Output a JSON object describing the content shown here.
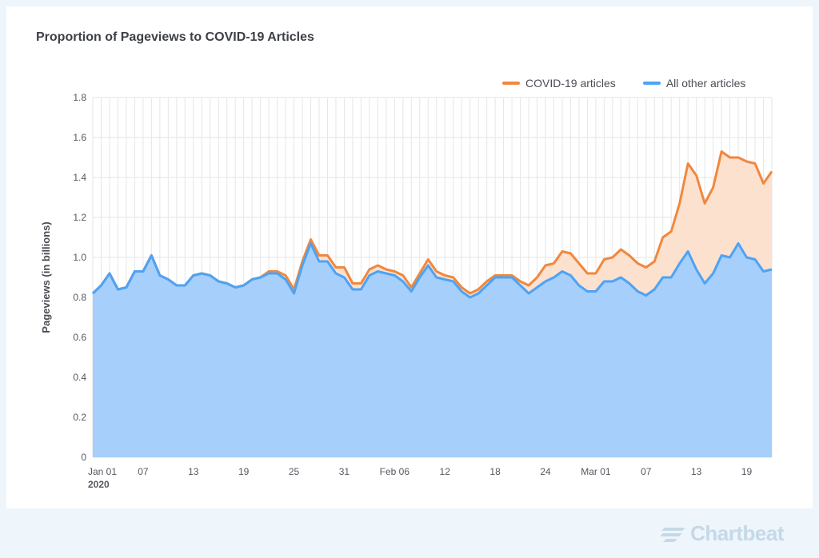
{
  "title": "Proportion of Pageviews to COVID-19 Articles",
  "legend": [
    {
      "label": "COVID-19 articles",
      "color": "#f0883e"
    },
    {
      "label": "All other articles",
      "color": "#4da3f5"
    }
  ],
  "brand": {
    "name": "Chartbeat",
    "icon": "chartbeat-logo-icon"
  },
  "colors": {
    "covid_line": "#f0883e",
    "covid_fill": "#fde1cf",
    "other_line": "#4da3f5",
    "other_fill": "#a6cffb",
    "grid": "#e6e6e6"
  },
  "chart_data": {
    "type": "area",
    "title": "Proportion of Pageviews to COVID-19 Articles",
    "xlabel": "",
    "ylabel": "Pageviews (in billions)",
    "ylim": [
      0,
      1.8
    ],
    "yticks": [
      "0",
      "0.2",
      "0.4",
      "0.6",
      "0.8",
      "1.0",
      "1.2",
      "1.4",
      "1.6",
      "1.8"
    ],
    "x_tick_labels": [
      {
        "day": 1,
        "label": "Jan 01",
        "sublabel": "2020"
      },
      {
        "day": 7,
        "label": "07"
      },
      {
        "day": 13,
        "label": "13"
      },
      {
        "day": 19,
        "label": "19"
      },
      {
        "day": 25,
        "label": "25"
      },
      {
        "day": 31,
        "label": "31"
      },
      {
        "day": 37,
        "label": "Feb 06"
      },
      {
        "day": 43,
        "label": "12"
      },
      {
        "day": 49,
        "label": "18"
      },
      {
        "day": 55,
        "label": "24"
      },
      {
        "day": 61,
        "label": "Mar 01"
      },
      {
        "day": 67,
        "label": "07"
      },
      {
        "day": 73,
        "label": "13"
      },
      {
        "day": 79,
        "label": "19"
      }
    ],
    "x_start": "2020-01-01",
    "x_end": "2020-03-22",
    "grid": true,
    "legend_position": "top-right",
    "stacked": true,
    "series": [
      {
        "name": "All other articles",
        "values": [
          0.82,
          0.86,
          0.92,
          0.84,
          0.85,
          0.93,
          0.93,
          1.01,
          0.91,
          0.89,
          0.86,
          0.86,
          0.91,
          0.92,
          0.91,
          0.88,
          0.87,
          0.85,
          0.86,
          0.89,
          0.9,
          0.92,
          0.92,
          0.89,
          0.82,
          0.96,
          1.07,
          0.98,
          0.98,
          0.92,
          0.9,
          0.84,
          0.84,
          0.91,
          0.93,
          0.92,
          0.91,
          0.88,
          0.83,
          0.9,
          0.96,
          0.9,
          0.89,
          0.88,
          0.83,
          0.8,
          0.82,
          0.86,
          0.9,
          0.9,
          0.9,
          0.86,
          0.82,
          0.85,
          0.88,
          0.9,
          0.93,
          0.91,
          0.86,
          0.83,
          0.83,
          0.88,
          0.88,
          0.9,
          0.87,
          0.83,
          0.81,
          0.84,
          0.9,
          0.9,
          0.97,
          1.03,
          0.94,
          0.87,
          0.92,
          1.01,
          1.0,
          1.07,
          1.0,
          0.99,
          0.93,
          0.94
        ]
      },
      {
        "name": "COVID-19 articles",
        "values": [
          0,
          0,
          0,
          0,
          0,
          0,
          0,
          0,
          0,
          0,
          0,
          0,
          0,
          0,
          0,
          0,
          0,
          0,
          0,
          0,
          0,
          0.01,
          0.01,
          0.02,
          0.02,
          0.02,
          0.02,
          0.03,
          0.03,
          0.03,
          0.05,
          0.03,
          0.03,
          0.03,
          0.03,
          0.02,
          0.02,
          0.03,
          0.02,
          0.02,
          0.03,
          0.03,
          0.02,
          0.02,
          0.02,
          0.02,
          0.02,
          0.02,
          0.01,
          0.01,
          0.01,
          0.02,
          0.04,
          0.05,
          0.08,
          0.07,
          0.1,
          0.11,
          0.11,
          0.09,
          0.09,
          0.11,
          0.12,
          0.14,
          0.14,
          0.14,
          0.14,
          0.14,
          0.2,
          0.23,
          0.3,
          0.44,
          0.47,
          0.4,
          0.43,
          0.52,
          0.5,
          0.43,
          0.48,
          0.48,
          0.44,
          0.49
        ]
      }
    ]
  }
}
